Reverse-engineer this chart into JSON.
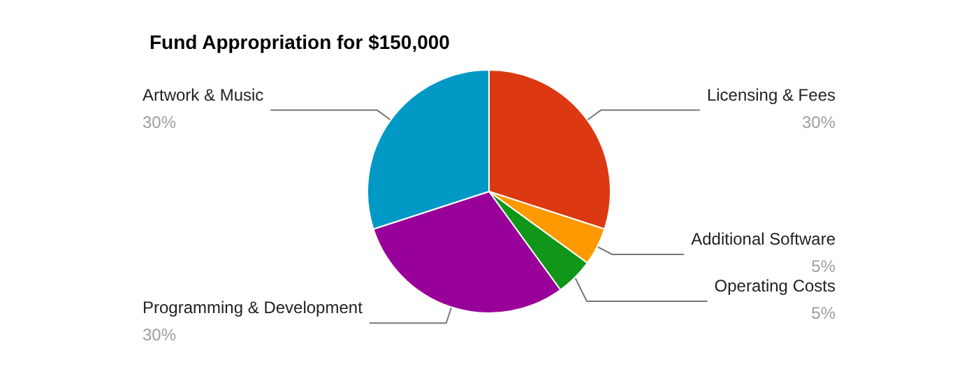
{
  "chart_data": {
    "type": "pie",
    "title": "Fund Appropriation for $150,000",
    "categories": [
      "Licensing & Fees",
      "Additional Software",
      "Operating Costs",
      "Programming & Development",
      "Artwork & Music"
    ],
    "values": [
      30,
      5,
      5,
      30,
      30
    ],
    "colors": [
      "#dc3912",
      "#ff9900",
      "#109618",
      "#990099",
      "#0099c6"
    ],
    "value_labels": [
      "30%",
      "5%",
      "5%",
      "30%",
      "30%"
    ]
  }
}
